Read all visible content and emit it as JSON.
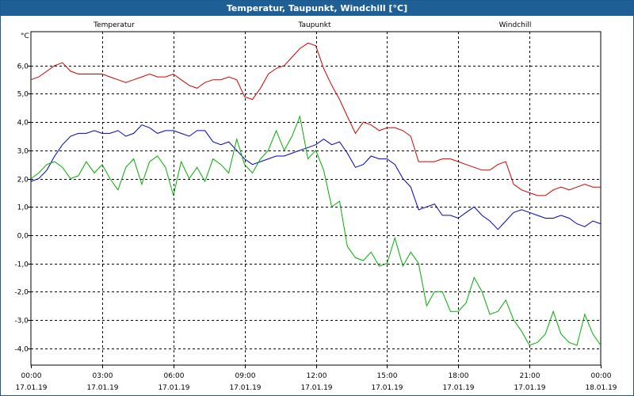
{
  "window": {
    "title": "Temperatur, Taupunkt, Windchill [°C]"
  },
  "chart_data": {
    "type": "line",
    "title": "Temperatur, Taupunkt, Windchill [°C]",
    "ylabel": "°C",
    "ylim": [
      -4.6,
      7.2
    ],
    "yticks": [
      6.0,
      5.0,
      4.0,
      3.0,
      2.0,
      1.0,
      0.0,
      -1.0,
      -2.0,
      -3.0,
      -4.0
    ],
    "ytick_labels": [
      "6,0",
      "5,0",
      "4,0",
      "3,0",
      "2,0",
      "1,0",
      "0,0",
      "-1,0",
      "-2,0",
      "-3,0",
      "-4,0"
    ],
    "xlim": [
      0,
      24
    ],
    "xticks": [
      {
        "hours": 0,
        "time": "00:00",
        "date": "17.01.19"
      },
      {
        "hours": 3,
        "time": "03:00",
        "date": "17.01.19"
      },
      {
        "hours": 6,
        "time": "06:00",
        "date": "17.01.19"
      },
      {
        "hours": 9,
        "time": "09:00",
        "date": "17.01.19"
      },
      {
        "hours": 12,
        "time": "12:00",
        "date": "17.01.19"
      },
      {
        "hours": 15,
        "time": "15:00",
        "date": "17.01.19"
      },
      {
        "hours": 18,
        "time": "18:00",
        "date": "17.01.19"
      },
      {
        "hours": 21,
        "time": "21:00",
        "date": "17.01.19"
      },
      {
        "hours": 24,
        "time": "00:00",
        "date": "18.01.19"
      }
    ],
    "grid": true,
    "legend": "top",
    "series": [
      {
        "name": "Temperatur",
        "color": "#d00000",
        "x": [
          0,
          0.33,
          0.67,
          1,
          1.33,
          1.67,
          2,
          2.33,
          2.67,
          3,
          3.33,
          3.67,
          4,
          4.33,
          4.67,
          5,
          5.33,
          5.67,
          6,
          6.33,
          6.67,
          7,
          7.33,
          7.67,
          8,
          8.33,
          8.67,
          9,
          9.33,
          9.67,
          10,
          10.33,
          10.67,
          11,
          11.33,
          11.67,
          12,
          12.33,
          12.67,
          13,
          13.33,
          13.67,
          14,
          14.33,
          14.67,
          15,
          15.33,
          15.67,
          16,
          16.33,
          16.67,
          17,
          17.33,
          17.67,
          18,
          18.33,
          18.67,
          19,
          19.33,
          19.67,
          20,
          20.33,
          20.67,
          21,
          21.33,
          21.67,
          22,
          22.33,
          22.67,
          23,
          23.33,
          23.67,
          24
        ],
        "values": [
          5.5,
          5.6,
          5.8,
          6.0,
          6.1,
          5.8,
          5.7,
          5.7,
          5.7,
          5.7,
          5.6,
          5.5,
          5.4,
          5.5,
          5.6,
          5.7,
          5.6,
          5.6,
          5.7,
          5.5,
          5.3,
          5.2,
          5.4,
          5.5,
          5.5,
          5.6,
          5.5,
          4.9,
          4.8,
          5.2,
          5.7,
          5.9,
          6.0,
          6.3,
          6.6,
          6.8,
          6.7,
          5.9,
          5.3,
          4.8,
          4.2,
          3.6,
          4.0,
          3.9,
          3.7,
          3.8,
          3.8,
          3.7,
          3.5,
          2.6,
          2.6,
          2.6,
          2.7,
          2.7,
          2.6,
          2.5,
          2.4,
          2.3,
          2.3,
          2.5,
          2.6,
          1.8,
          1.6,
          1.5,
          1.4,
          1.4,
          1.6,
          1.7,
          1.6,
          1.7,
          1.8,
          1.7,
          1.7
        ]
      },
      {
        "name": "Taupunkt",
        "color": "#0000c0",
        "x": [
          0,
          0.33,
          0.67,
          1,
          1.33,
          1.67,
          2,
          2.33,
          2.67,
          3,
          3.33,
          3.67,
          4,
          4.33,
          4.67,
          5,
          5.33,
          5.67,
          6,
          6.33,
          6.67,
          7,
          7.33,
          7.67,
          8,
          8.33,
          8.67,
          9,
          9.33,
          9.67,
          10,
          10.33,
          10.67,
          11,
          11.33,
          11.67,
          12,
          12.33,
          12.67,
          13,
          13.33,
          13.67,
          14,
          14.33,
          14.67,
          15,
          15.33,
          15.67,
          16,
          16.33,
          16.67,
          17,
          17.33,
          17.67,
          18,
          18.33,
          18.67,
          19,
          19.33,
          19.67,
          20,
          20.33,
          20.67,
          21,
          21.33,
          21.67,
          22,
          22.33,
          22.67,
          23,
          23.33,
          23.67,
          24
        ],
        "values": [
          1.9,
          2.0,
          2.3,
          2.8,
          3.2,
          3.5,
          3.6,
          3.6,
          3.7,
          3.6,
          3.6,
          3.7,
          3.5,
          3.6,
          3.9,
          3.8,
          3.6,
          3.7,
          3.7,
          3.6,
          3.5,
          3.7,
          3.7,
          3.3,
          3.2,
          3.3,
          3.0,
          2.7,
          2.5,
          2.6,
          2.7,
          2.8,
          2.8,
          2.9,
          3.0,
          3.1,
          3.2,
          3.4,
          3.2,
          3.3,
          2.9,
          2.4,
          2.5,
          2.8,
          2.7,
          2.7,
          2.5,
          2.0,
          1.7,
          0.9,
          1.0,
          1.1,
          0.7,
          0.7,
          0.6,
          0.8,
          1.0,
          0.7,
          0.5,
          0.2,
          0.5,
          0.8,
          0.9,
          0.8,
          0.7,
          0.6,
          0.6,
          0.7,
          0.6,
          0.4,
          0.3,
          0.5,
          0.4
        ]
      },
      {
        "name": "Windchill",
        "color": "#00b000",
        "x": [
          0,
          0.33,
          0.67,
          1,
          1.33,
          1.67,
          2,
          2.33,
          2.67,
          3,
          3.33,
          3.67,
          4,
          4.33,
          4.67,
          5,
          5.33,
          5.67,
          6,
          6.33,
          6.67,
          7,
          7.33,
          7.67,
          8,
          8.33,
          8.67,
          9,
          9.33,
          9.67,
          10,
          10.33,
          10.67,
          11,
          11.33,
          11.67,
          12,
          12.33,
          12.67,
          13,
          13.33,
          13.67,
          14,
          14.33,
          14.67,
          15,
          15.33,
          15.67,
          16,
          16.33,
          16.67,
          17,
          17.33,
          17.67,
          18,
          18.33,
          18.67,
          19,
          19.33,
          19.67,
          20,
          20.33,
          20.67,
          21,
          21.33,
          21.67,
          22,
          22.33,
          22.67,
          23,
          23.33,
          23.67,
          24
        ],
        "values": [
          2.0,
          2.2,
          2.5,
          2.6,
          2.4,
          2.0,
          2.1,
          2.6,
          2.2,
          2.5,
          2.0,
          1.6,
          2.4,
          2.7,
          1.8,
          2.6,
          2.8,
          2.4,
          1.4,
          2.6,
          2.0,
          2.4,
          1.9,
          2.7,
          2.5,
          2.2,
          3.4,
          2.5,
          2.2,
          2.7,
          3.0,
          3.7,
          3.0,
          3.5,
          4.2,
          2.7,
          3.0,
          2.3,
          1.0,
          1.2,
          -0.4,
          -0.8,
          -0.9,
          -0.6,
          -1.1,
          -1.0,
          -0.1,
          -1.1,
          -0.6,
          -1.0,
          -2.5,
          -2.0,
          -2.0,
          -2.7,
          -2.7,
          -2.4,
          -1.5,
          -2.0,
          -2.8,
          -2.7,
          -2.3,
          -3.0,
          -3.4,
          -3.9,
          -3.8,
          -3.5,
          -2.7,
          -3.5,
          -3.8,
          -3.9,
          -2.8,
          -3.5,
          -3.9
        ]
      }
    ]
  }
}
